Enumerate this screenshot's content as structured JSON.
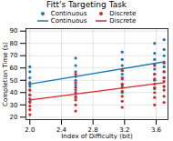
{
  "chart_data": {
    "type": "scatter",
    "title": "Fitt's Targeting Task",
    "x_label": "Index of Difficulty (bit)",
    "y_label": "Completion Time (s)",
    "xlim": [
      1.95,
      3.75
    ],
    "xticks": [
      {
        "value": 2,
        "label": "2.0"
      },
      2.4,
      2.8,
      3.2,
      3.6
    ],
    "ylim": [
      18,
      92
    ],
    "yticks": [
      20,
      30,
      40,
      50,
      60,
      70,
      80,
      90
    ],
    "grid": true,
    "legend": "top",
    "series": [
      {
        "name": "Continuous",
        "type": "scatter",
        "marker": "o",
        "color": "#1f77b4",
        "x": [
          2.0,
          2.0,
          2.0,
          2.0,
          2.0,
          2.0,
          2.0,
          2.0,
          2.58,
          2.58,
          2.58,
          2.58,
          2.58,
          2.58,
          2.58,
          2.58,
          3.17,
          3.17,
          3.17,
          3.17,
          3.17,
          3.17,
          3.17,
          3.17,
          3.58,
          3.58,
          3.58,
          3.58,
          3.58,
          3.58,
          3.58,
          3.58,
          3.7,
          3.7,
          3.7,
          3.7,
          3.7,
          3.7,
          3.7,
          3.7
        ],
        "values": [
          33,
          38,
          42,
          45,
          48,
          52,
          57,
          61,
          36,
          42,
          46,
          50,
          53,
          57,
          62,
          68,
          40,
          46,
          51,
          55,
          58,
          62,
          67,
          73,
          43,
          50,
          55,
          59,
          63,
          67,
          72,
          80,
          45,
          52,
          57,
          61,
          65,
          70,
          75,
          83
        ]
      },
      {
        "name": "Discrete",
        "type": "scatter",
        "marker": "o",
        "color": "#d62728",
        "x": [
          2.0,
          2.0,
          2.0,
          2.0,
          2.0,
          2.0,
          2.0,
          2.0,
          2.58,
          2.58,
          2.58,
          2.58,
          2.58,
          2.58,
          2.58,
          2.58,
          3.17,
          3.17,
          3.17,
          3.17,
          3.17,
          3.17,
          3.17,
          3.17,
          3.58,
          3.58,
          3.58,
          3.58,
          3.58,
          3.58,
          3.58,
          3.58,
          3.7,
          3.7,
          3.7,
          3.7,
          3.7,
          3.7,
          3.7,
          3.7
        ],
        "values": [
          22,
          26,
          29,
          32,
          35,
          38,
          42,
          47,
          25,
          30,
          34,
          37,
          40,
          44,
          48,
          55,
          28,
          33,
          37,
          41,
          44,
          47,
          52,
          58,
          30,
          36,
          40,
          44,
          47,
          51,
          55,
          62,
          32,
          37,
          42,
          45,
          49,
          52,
          57,
          64
        ]
      },
      {
        "name": "Continuous",
        "type": "line",
        "line_style": "solid",
        "color": "#1f77b4",
        "x": [
          2.0,
          3.7
        ],
        "values": [
          47,
          65
        ]
      },
      {
        "name": "Discrete",
        "type": "line",
        "line_style": "solid",
        "color": "#d62728",
        "x": [
          2.0,
          3.7
        ],
        "values": [
          34,
          48
        ]
      }
    ]
  }
}
